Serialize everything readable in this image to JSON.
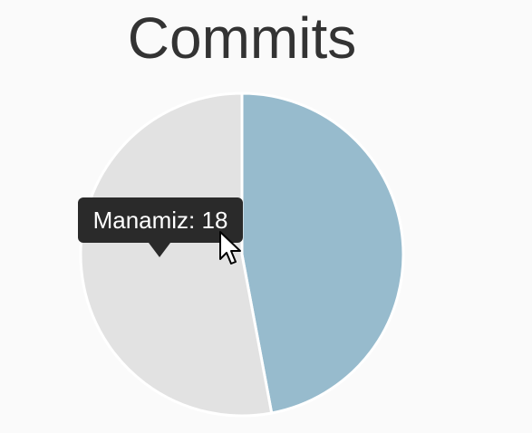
{
  "chart_data": {
    "type": "pie",
    "title": "Commits",
    "slices": [
      {
        "label": "",
        "value": 16,
        "color": "#97bbcd"
      },
      {
        "label": "Manamiz",
        "value": 18,
        "color": "#e2e2e2"
      }
    ],
    "tooltip": {
      "label": "Manamiz",
      "value": 18,
      "text": "Manamiz: 18"
    }
  },
  "colors": {
    "background": "#fafafa",
    "title": "#333333",
    "tooltip_bg": "#2a2a2a",
    "slice_border": "#ffffff"
  },
  "icons": {
    "cursor": "arrow-cursor-icon"
  }
}
